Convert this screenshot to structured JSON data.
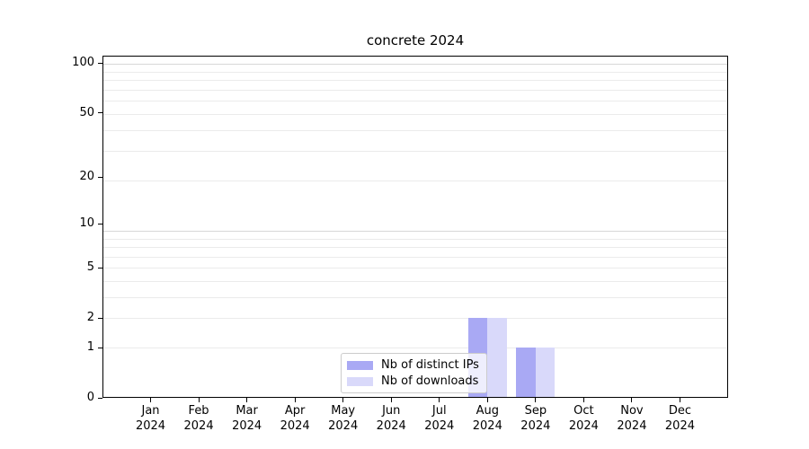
{
  "chart_data": {
    "type": "bar",
    "title": "concrete 2024",
    "x_tick_months": [
      "Jan",
      "Feb",
      "Mar",
      "Apr",
      "May",
      "Jun",
      "Jul",
      "Aug",
      "Sep",
      "Oct",
      "Nov",
      "Dec"
    ],
    "x_tick_year": "2024",
    "series": [
      {
        "name": "Nb of distinct IPs",
        "color": "#a9a9f4",
        "values": [
          0,
          0,
          0,
          0,
          0,
          0,
          0,
          2,
          1,
          0,
          0,
          0
        ]
      },
      {
        "name": "Nb of downloads",
        "color": "#d9d9fa",
        "values": [
          0,
          0,
          0,
          0,
          0,
          0,
          0,
          2,
          1,
          0,
          0,
          0
        ]
      }
    ],
    "yscale": "log1p",
    "yticks": [
      0,
      1,
      2,
      5,
      10,
      20,
      50,
      100
    ],
    "ylim": [
      0,
      111
    ],
    "grid": true,
    "legend_position": "lower-center-inside",
    "frame_color": "#000000",
    "grid_minor_color": "#ebebeb",
    "grid_major_color": "#d8d8d8"
  }
}
